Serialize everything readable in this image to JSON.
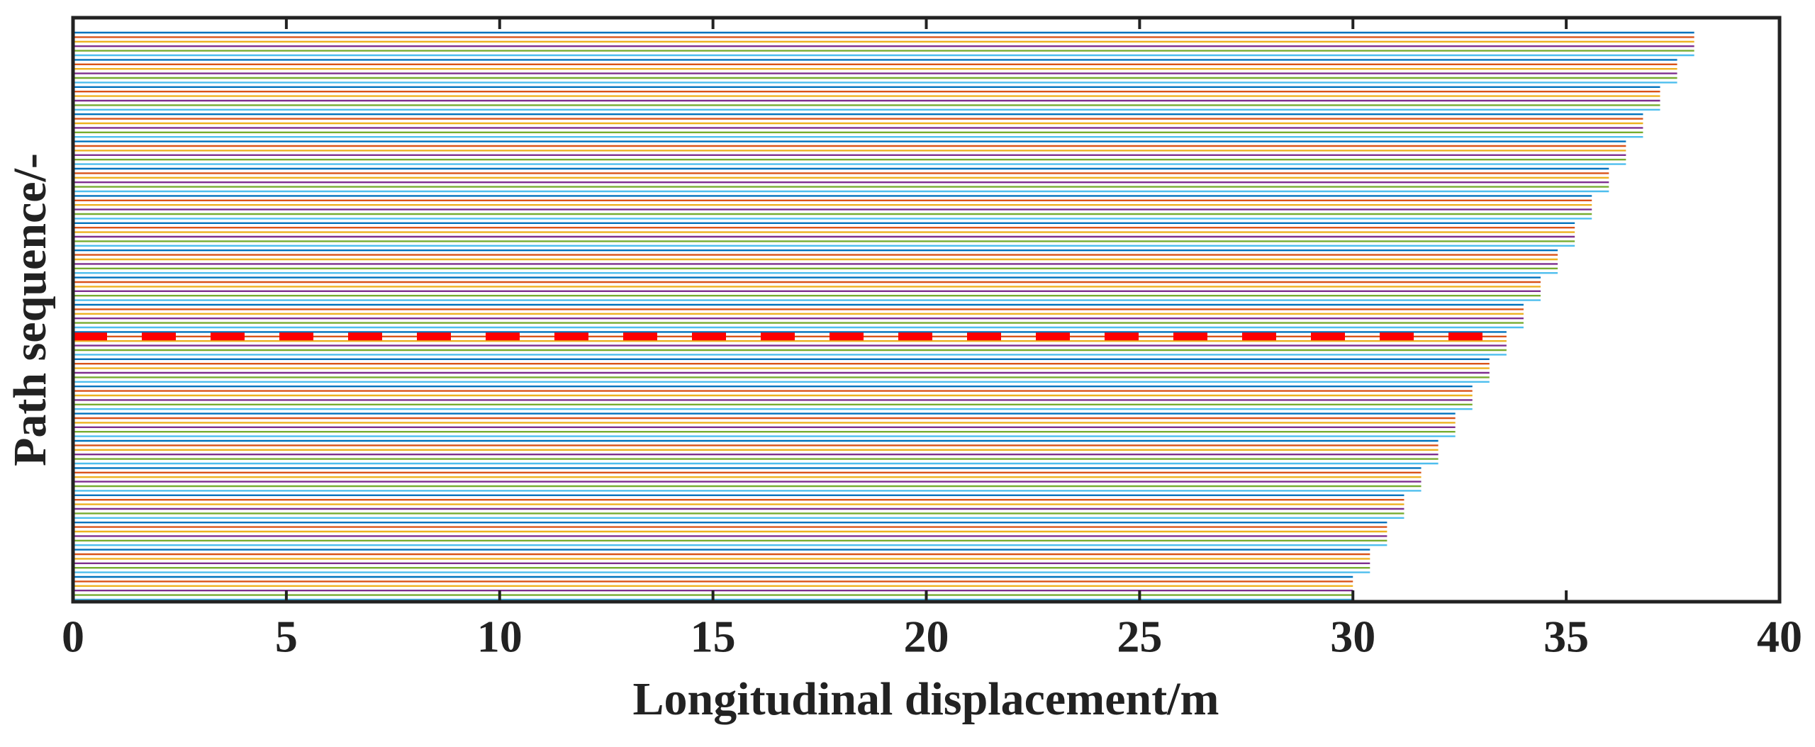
{
  "chart_data": {
    "type": "line-lengths",
    "xlabel": "Longitudinal displacement/m",
    "ylabel": "Path sequence/-",
    "xlim": [
      0,
      40
    ],
    "xticks": [
      0,
      5,
      10,
      15,
      20,
      25,
      30,
      35,
      40
    ],
    "colors": [
      "#0072BD",
      "#D95319",
      "#EDB120",
      "#7E2F8E",
      "#77AC30",
      "#4DBEEE"
    ],
    "values": [
      38,
      38,
      38,
      38,
      38,
      38,
      37.6,
      37.6,
      37.6,
      37.6,
      37.6,
      37.6,
      37.2,
      37.2,
      37.2,
      37.2,
      37.2,
      37.2,
      36.8,
      36.8,
      36.8,
      36.8,
      36.8,
      36.8,
      36.4,
      36.4,
      36.4,
      36.4,
      36.4,
      36.4,
      36,
      36,
      36,
      36,
      36,
      36,
      35.6,
      35.6,
      35.6,
      35.6,
      35.6,
      35.6,
      35.2,
      35.2,
      35.2,
      35.2,
      35.2,
      35.2,
      34.8,
      34.8,
      34.8,
      34.8,
      34.8,
      34.8,
      34.4,
      34.4,
      34.4,
      34.4,
      34.4,
      34.4,
      34,
      34,
      34,
      34,
      34,
      34,
      33.6,
      33.6,
      33.6,
      33.6,
      33.6,
      33.6,
      33.2,
      33.2,
      33.2,
      33.2,
      33.2,
      33.2,
      32.8,
      32.8,
      32.8,
      32.8,
      32.8,
      32.8,
      32.4,
      32.4,
      32.4,
      32.4,
      32.4,
      32.4,
      32,
      32,
      32,
      32,
      32,
      32,
      31.6,
      31.6,
      31.6,
      31.6,
      31.6,
      31.6,
      31.2,
      31.2,
      31.2,
      31.2,
      31.2,
      31.2,
      30.8,
      30.8,
      30.8,
      30.8,
      30.8,
      30.8,
      30.4,
      30.4,
      30.4,
      30.4,
      30.4,
      30.4,
      30,
      30,
      30,
      30,
      30,
      30
    ],
    "reference": {
      "color": "#ff0000",
      "x": [
        0,
        33.3
      ],
      "row": 67
    }
  }
}
